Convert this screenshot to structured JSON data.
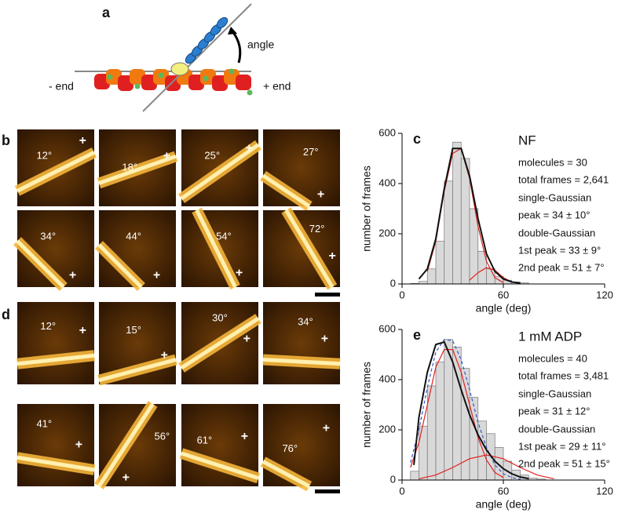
{
  "panel_a": {
    "label": "a",
    "angle_label": "angle",
    "minus_end": "- end",
    "plus_end": "+ end"
  },
  "panel_b": {
    "label": "b",
    "images": [
      {
        "angle": "12°",
        "marker": "+"
      },
      {
        "angle": "18°",
        "marker": "+"
      },
      {
        "angle": "25°",
        "marker": "+"
      },
      {
        "angle": "27°",
        "marker": "+"
      },
      {
        "angle": "34°",
        "marker": "+"
      },
      {
        "angle": "44°",
        "marker": "+"
      },
      {
        "angle": "54°",
        "marker": "+"
      },
      {
        "angle": "72°",
        "marker": "+"
      }
    ]
  },
  "panel_d": {
    "label": "d",
    "images": [
      {
        "angle": "12°",
        "marker": "+"
      },
      {
        "angle": "15°",
        "marker": "+"
      },
      {
        "angle": "30°",
        "marker": "+"
      },
      {
        "angle": "34°",
        "marker": "+"
      },
      {
        "angle": "41°",
        "marker": "+"
      },
      {
        "angle": "56°",
        "marker": "+"
      },
      {
        "angle": "61°",
        "marker": "+"
      },
      {
        "angle": "76°",
        "marker": "+"
      }
    ]
  },
  "chart_data": [
    {
      "type": "histogram",
      "panel": "c",
      "xlabel": "angle (deg)",
      "ylabel": "number of frames",
      "xlim": [
        0,
        120
      ],
      "xticks": [
        0,
        60,
        120
      ],
      "ylim": [
        0,
        600
      ],
      "yticks": [
        0,
        200,
        400,
        600
      ],
      "color": "#d9d9d9",
      "bins": [
        5,
        10,
        15,
        20,
        25,
        30,
        35,
        40,
        45,
        50,
        55,
        60,
        65,
        70,
        75
      ],
      "values": [
        2,
        10,
        60,
        170,
        410,
        565,
        500,
        300,
        130,
        60,
        30,
        15,
        8,
        4
      ],
      "curves": [
        {
          "color": "#e02020",
          "dash": false,
          "x": [
            15,
            20,
            25,
            30,
            35,
            40,
            45,
            50,
            55,
            60
          ],
          "values": [
            50,
            170,
            370,
            520,
            540,
            420,
            230,
            90,
            25,
            5
          ]
        },
        {
          "color": "#e02020",
          "dash": false,
          "x": [
            40,
            45,
            50,
            55,
            60,
            65
          ],
          "values": [
            15,
            45,
            65,
            55,
            25,
            8
          ]
        },
        {
          "color": "#111111",
          "dash": false,
          "x": [
            10,
            15,
            20,
            25,
            30,
            35,
            40,
            45,
            50,
            55,
            60,
            65,
            70
          ],
          "values": [
            20,
            60,
            180,
            380,
            540,
            540,
            430,
            260,
            120,
            50,
            20,
            8,
            3
          ]
        }
      ],
      "annotations": [
        "NF",
        "molecules = 30",
        "total frames = 2,641",
        "single-Gaussian",
        "peak = 34 ± 10°",
        "double-Gaussian",
        "1st peak = 33 ± 9°",
        "2nd peak = 51 ± 7°"
      ]
    },
    {
      "type": "histogram",
      "panel": "e",
      "xlabel": "angle (deg)",
      "ylabel": "number of frames",
      "xlim": [
        0,
        120
      ],
      "xticks": [
        0,
        60,
        120
      ],
      "ylim": [
        0,
        600
      ],
      "yticks": [
        0,
        200,
        400,
        600
      ],
      "color": "#d9d9d9",
      "bins": [
        5,
        10,
        15,
        20,
        25,
        30,
        35,
        40,
        45,
        50,
        55,
        60,
        65,
        70,
        75,
        80,
        85
      ],
      "values": [
        35,
        215,
        375,
        470,
        560,
        530,
        445,
        330,
        235,
        185,
        130,
        75,
        40,
        20,
        8,
        4
      ],
      "curves": [
        {
          "color": "#e02020",
          "dash": false,
          "x": [
            5,
            10,
            15,
            20,
            25,
            30,
            35,
            40,
            45,
            50,
            55,
            60
          ],
          "values": [
            50,
            150,
            300,
            450,
            520,
            520,
            430,
            300,
            170,
            80,
            30,
            10
          ]
        },
        {
          "color": "#e02020",
          "dash": false,
          "x": [
            10,
            20,
            30,
            40,
            50,
            60,
            70,
            80,
            90
          ],
          "values": [
            5,
            20,
            50,
            85,
            100,
            85,
            50,
            20,
            5
          ]
        },
        {
          "color": "#3355cc",
          "dash": true,
          "x": [
            5,
            10,
            15,
            20,
            25,
            30,
            35,
            40,
            45,
            50,
            55,
            60,
            65,
            70
          ],
          "values": [
            70,
            200,
            370,
            510,
            560,
            555,
            480,
            360,
            230,
            130,
            60,
            25,
            10,
            3
          ]
        },
        {
          "color": "#111111",
          "dash": false,
          "x": [
            7,
            10,
            15,
            20,
            25,
            30,
            35,
            40,
            45,
            50,
            55,
            60,
            65,
            70,
            75
          ],
          "values": [
            60,
            250,
            430,
            540,
            550,
            470,
            360,
            260,
            180,
            120,
            75,
            45,
            25,
            12,
            6
          ]
        }
      ],
      "annotations": [
        "1 mM ADP",
        "molecules = 40",
        "total frames = 3,481",
        "single-Gaussian",
        "peak =  31 ± 12°",
        "double-Gaussian",
        "1st peak = 29 ± 11°",
        "2nd peak = 51 ± 15°"
      ]
    }
  ]
}
